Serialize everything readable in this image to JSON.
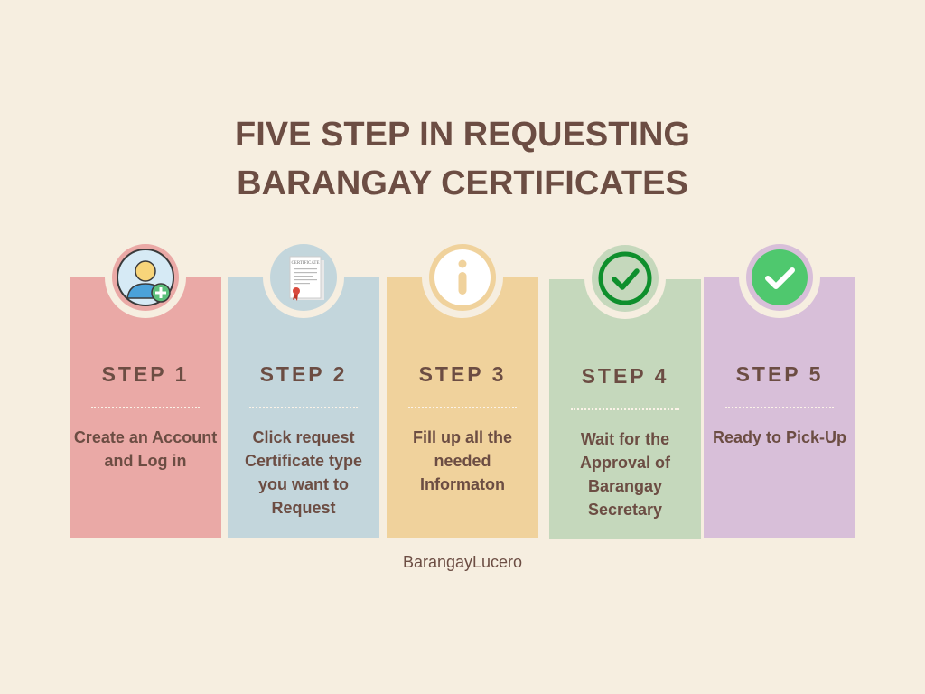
{
  "title_line1": "FIVE STEP IN REQUESTING",
  "title_line2": "BARANGAY CERTIFICATES",
  "steps": [
    {
      "label": "STEP 1",
      "text": "Create an Account and Log in",
      "color": "#eaa9a6",
      "icon": "add-user-icon"
    },
    {
      "label": "STEP 2",
      "text": "Click request Certificate type you want to Request",
      "color": "#c3d6dc",
      "icon": "certificate-document-icon"
    },
    {
      "label": "STEP 3",
      "text": "Fill up all the needed Informaton",
      "color": "#f0d29c",
      "icon": "info-icon"
    },
    {
      "label": "STEP 4",
      "text": "Wait for the Approval of Barangay Secretary",
      "color": "#c5d8bc",
      "icon": "check-circle-outline-icon"
    },
    {
      "label": "STEP 5",
      "text": "Ready to Pick-Up",
      "color": "#d8bfd9",
      "icon": "check-circle-filled-icon"
    }
  ],
  "certificate_heading": "CERTIFICATE",
  "footer": "BarangayLucero"
}
